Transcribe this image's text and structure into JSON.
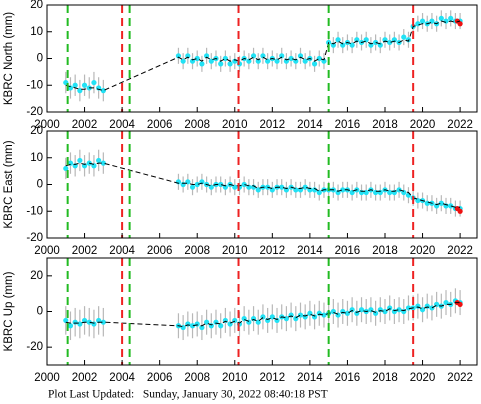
{
  "chart_data": [
    {
      "type": "scatter",
      "ylabel": "KBRC North (mm)",
      "xlim": [
        2000,
        2022.9
      ],
      "xticks": [
        2000,
        2002,
        2004,
        2006,
        2008,
        2010,
        2012,
        2014,
        2016,
        2018,
        2020,
        2022
      ],
      "ylim": [
        -20,
        20
      ],
      "yticks": [
        -20,
        -10,
        0,
        10,
        20
      ],
      "x": [
        2001.0,
        2001.25,
        2001.5,
        2001.75,
        2002.0,
        2002.25,
        2002.5,
        2002.75,
        2003.0,
        2007.0,
        2007.25,
        2007.5,
        2007.75,
        2008.0,
        2008.25,
        2008.5,
        2008.75,
        2009.0,
        2009.25,
        2009.5,
        2009.75,
        2010.0,
        2010.25,
        2010.5,
        2010.75,
        2011.0,
        2011.25,
        2011.5,
        2011.75,
        2012.0,
        2012.25,
        2012.5,
        2012.75,
        2013.0,
        2013.25,
        2013.5,
        2013.75,
        2014.0,
        2014.25,
        2014.5,
        2014.75,
        2015.0,
        2015.25,
        2015.5,
        2015.75,
        2016.0,
        2016.25,
        2016.5,
        2016.75,
        2017.0,
        2017.25,
        2017.5,
        2017.75,
        2018.0,
        2018.25,
        2018.5,
        2018.75,
        2019.0,
        2019.25,
        2019.5,
        2019.75,
        2020.0,
        2020.25,
        2020.5,
        2020.75,
        2021.0,
        2021.25,
        2021.5,
        2021.75,
        2022.0
      ],
      "vlines": [
        {
          "x": 2001.1,
          "color": "#22bb22"
        },
        {
          "x": 2004.0,
          "color": "#ee2222"
        },
        {
          "x": 2004.4,
          "color": "#22bb22"
        },
        {
          "x": 2010.2,
          "color": "#ee2222"
        },
        {
          "x": 2015.0,
          "color": "#22bb22"
        },
        {
          "x": 2019.5,
          "color": "#ee2222"
        }
      ],
      "series": [
        {
          "color": "#22e2f5",
          "error_color": "#b8b8b8",
          "values": [
            -9,
            -11,
            -10,
            -12,
            -10,
            -11,
            -9,
            -11,
            -12,
            1,
            -1,
            1,
            -1,
            0,
            -2,
            1,
            -1,
            0,
            -2,
            0,
            -2,
            -1,
            -2,
            0,
            -1,
            1,
            -1,
            1,
            -1,
            0,
            -1,
            1,
            -1,
            0,
            -1,
            1,
            -1,
            0,
            -2,
            0,
            -1,
            6,
            5,
            7,
            5,
            6,
            5,
            7,
            6,
            7,
            5,
            6,
            5,
            7,
            6,
            7,
            6,
            8,
            7,
            12,
            13,
            14,
            13,
            14,
            13,
            15,
            14,
            15,
            14,
            14
          ],
          "errors": [
            4,
            4,
            4,
            4,
            4,
            4,
            4,
            4,
            4,
            3,
            3,
            3,
            3,
            3,
            3,
            3,
            3,
            3,
            3,
            3,
            3,
            3,
            3,
            3,
            3,
            3,
            3,
            3,
            3,
            3,
            3,
            3,
            3,
            3,
            3,
            3,
            3,
            3,
            3,
            3,
            3,
            3,
            3,
            3,
            3,
            3,
            3,
            3,
            3,
            3,
            3,
            3,
            3,
            3,
            3,
            3,
            3,
            3,
            3,
            3,
            3,
            3,
            3,
            3,
            3,
            3,
            3,
            3,
            3,
            3
          ]
        },
        {
          "color": "#000000",
          "style": "dashed",
          "values": [
            -10,
            -10.5,
            -11,
            -11.5,
            -11.5,
            -11,
            -11,
            -11.5,
            -12,
            0.5,
            -0.5,
            0.5,
            -0.5,
            0,
            -1,
            0.5,
            -0.5,
            0,
            -1,
            0,
            -1,
            -0.5,
            -1,
            0,
            -0.5,
            0.5,
            -0.5,
            0.5,
            -0.5,
            0,
            -0.5,
            0.5,
            -0.5,
            0,
            -0.5,
            0.5,
            -0.5,
            0,
            -1,
            0,
            -0.5,
            6,
            5.5,
            6.5,
            5.5,
            6,
            5.5,
            6.5,
            6,
            6.5,
            5.5,
            6,
            5.5,
            6.5,
            6,
            6.5,
            6,
            7,
            6.5,
            12,
            12.5,
            13,
            13,
            13.5,
            13,
            14,
            13.5,
            14,
            13.5,
            14
          ]
        },
        {
          "color": "#ee1111",
          "x": [
            2021.85,
            2022.0
          ],
          "values": [
            14,
            13
          ]
        }
      ]
    },
    {
      "type": "scatter",
      "ylabel": "KBRC East (mm)",
      "xlim": [
        2000,
        2022.9
      ],
      "xticks": [
        2000,
        2002,
        2004,
        2006,
        2008,
        2010,
        2012,
        2014,
        2016,
        2018,
        2020,
        2022
      ],
      "ylim": [
        -20,
        20
      ],
      "yticks": [
        -20,
        -10,
        0,
        10,
        20
      ],
      "x": [
        2001.0,
        2001.25,
        2001.5,
        2001.75,
        2002.0,
        2002.25,
        2002.5,
        2002.75,
        2003.0,
        2007.0,
        2007.25,
        2007.5,
        2007.75,
        2008.0,
        2008.25,
        2008.5,
        2008.75,
        2009.0,
        2009.25,
        2009.5,
        2009.75,
        2010.0,
        2010.25,
        2010.5,
        2010.75,
        2011.0,
        2011.25,
        2011.5,
        2011.75,
        2012.0,
        2012.25,
        2012.5,
        2012.75,
        2013.0,
        2013.25,
        2013.5,
        2013.75,
        2014.0,
        2014.25,
        2014.5,
        2014.75,
        2015.0,
        2015.25,
        2015.5,
        2015.75,
        2016.0,
        2016.25,
        2016.5,
        2016.75,
        2017.0,
        2017.25,
        2017.5,
        2017.75,
        2018.0,
        2018.25,
        2018.5,
        2018.75,
        2019.0,
        2019.25,
        2019.5,
        2019.75,
        2020.0,
        2020.25,
        2020.5,
        2020.75,
        2021.0,
        2021.25,
        2021.5,
        2021.75,
        2022.0
      ],
      "vlines": [
        {
          "x": 2001.1,
          "color": "#22bb22"
        },
        {
          "x": 2004.0,
          "color": "#ee2222"
        },
        {
          "x": 2004.4,
          "color": "#22bb22"
        },
        {
          "x": 2010.2,
          "color": "#ee2222"
        },
        {
          "x": 2015.0,
          "color": "#22bb22"
        },
        {
          "x": 2019.5,
          "color": "#ee2222"
        }
      ],
      "series": [
        {
          "color": "#22e2f5",
          "error_color": "#b8b8b8",
          "values": [
            6,
            8,
            7,
            9,
            7,
            8,
            7,
            9,
            8,
            1,
            0,
            1,
            -1,
            0,
            1,
            0,
            -1,
            0,
            0,
            -1,
            0,
            -1,
            -1,
            0,
            -1,
            -1,
            -2,
            -1,
            -1,
            -2,
            -1,
            -1,
            -2,
            -1,
            -2,
            -2,
            -1,
            -2,
            -2,
            -3,
            -2,
            -2,
            -2,
            -3,
            -2,
            -2,
            -3,
            -2,
            -3,
            -3,
            -2,
            -3,
            -3,
            -2,
            -3,
            -3,
            -2,
            -3,
            -4,
            -5,
            -6,
            -6,
            -7,
            -7,
            -8,
            -7,
            -8,
            -8,
            -9,
            -9
          ],
          "errors": [
            4,
            4,
            4,
            4,
            4,
            4,
            4,
            4,
            4,
            3,
            3,
            3,
            3,
            3,
            3,
            3,
            3,
            3,
            3,
            3,
            3,
            3,
            3,
            3,
            3,
            3,
            3,
            3,
            3,
            3,
            3,
            3,
            3,
            3,
            3,
            3,
            3,
            3,
            3,
            3,
            3,
            3,
            3,
            3,
            3,
            3,
            3,
            3,
            3,
            3,
            3,
            3,
            3,
            3,
            3,
            3,
            3,
            3,
            3,
            3,
            3,
            3,
            3,
            3,
            3,
            3,
            3,
            3,
            3,
            3
          ]
        },
        {
          "color": "#000000",
          "style": "dashed",
          "values": [
            7,
            7.5,
            7.5,
            8,
            7.5,
            8,
            7.5,
            8,
            8,
            0.5,
            0.5,
            0.5,
            0,
            0,
            0.5,
            0,
            -0.5,
            0,
            0,
            -0.5,
            0,
            -0.5,
            -0.5,
            0,
            -0.5,
            -0.5,
            -1.5,
            -1,
            -1,
            -1.5,
            -1,
            -1,
            -1.5,
            -1,
            -1.5,
            -1.5,
            -1,
            -1.5,
            -1.5,
            -2.5,
            -2,
            -2,
            -2,
            -2.5,
            -2,
            -2,
            -2.5,
            -2,
            -2.5,
            -2.5,
            -2,
            -2.5,
            -2.5,
            -2,
            -2.5,
            -2.5,
            -2,
            -2.5,
            -3,
            -5,
            -5.5,
            -6,
            -6.5,
            -7,
            -7.5,
            -7,
            -7.5,
            -8,
            -8.5,
            -8.5
          ]
        },
        {
          "color": "#ee1111",
          "x": [
            2021.85,
            2022.0
          ],
          "values": [
            -9,
            -10
          ]
        }
      ]
    },
    {
      "type": "scatter",
      "ylabel": "KBRC Up (mm)",
      "xlim": [
        2000,
        2022.9
      ],
      "xticks": [
        2000,
        2002,
        2004,
        2006,
        2008,
        2010,
        2012,
        2014,
        2016,
        2018,
        2020,
        2022
      ],
      "ylim": [
        -30,
        30
      ],
      "yticks": [
        -20,
        0,
        20
      ],
      "x": [
        2001.0,
        2001.25,
        2001.5,
        2001.75,
        2002.0,
        2002.25,
        2002.5,
        2002.75,
        2003.0,
        2007.0,
        2007.25,
        2007.5,
        2007.75,
        2008.0,
        2008.25,
        2008.5,
        2008.75,
        2009.0,
        2009.25,
        2009.5,
        2009.75,
        2010.0,
        2010.25,
        2010.5,
        2010.75,
        2011.0,
        2011.25,
        2011.5,
        2011.75,
        2012.0,
        2012.25,
        2012.5,
        2012.75,
        2013.0,
        2013.25,
        2013.5,
        2013.75,
        2014.0,
        2014.25,
        2014.5,
        2014.75,
        2015.0,
        2015.25,
        2015.5,
        2015.75,
        2016.0,
        2016.25,
        2016.5,
        2016.75,
        2017.0,
        2017.25,
        2017.5,
        2017.75,
        2018.0,
        2018.25,
        2018.5,
        2018.75,
        2019.0,
        2019.25,
        2019.5,
        2019.75,
        2020.0,
        2020.25,
        2020.5,
        2020.75,
        2021.0,
        2021.25,
        2021.5,
        2021.75,
        2022.0
      ],
      "vlines": [
        {
          "x": 2001.1,
          "color": "#22bb22"
        },
        {
          "x": 2004.0,
          "color": "#ee2222"
        },
        {
          "x": 2004.4,
          "color": "#22bb22"
        },
        {
          "x": 2010.2,
          "color": "#ee2222"
        },
        {
          "x": 2015.0,
          "color": "#22bb22"
        },
        {
          "x": 2019.5,
          "color": "#ee2222"
        }
      ],
      "series": [
        {
          "color": "#22e2f5",
          "error_color": "#b8b8b8",
          "values": [
            -5,
            -8,
            -6,
            -7,
            -5,
            -6,
            -7,
            -5,
            -6,
            -8,
            -9,
            -7,
            -8,
            -7,
            -9,
            -6,
            -8,
            -6,
            -8,
            -5,
            -7,
            -5,
            -7,
            -4,
            -6,
            -4,
            -6,
            -3,
            -5,
            -3,
            -5,
            -3,
            -4,
            -2,
            -4,
            -2,
            -3,
            -1,
            -3,
            -1,
            -2,
            -1,
            0,
            -2,
            0,
            -1,
            1,
            -1,
            1,
            0,
            1,
            -1,
            1,
            0,
            2,
            0,
            1,
            0,
            2,
            2,
            3,
            1,
            3,
            2,
            4,
            3,
            5,
            4,
            6,
            5
          ],
          "errors": [
            8,
            8,
            8,
            8,
            8,
            8,
            8,
            8,
            8,
            7,
            7,
            7,
            7,
            7,
            7,
            7,
            7,
            7,
            7,
            7,
            7,
            7,
            7,
            7,
            7,
            7,
            7,
            7,
            7,
            7,
            7,
            7,
            7,
            7,
            7,
            7,
            7,
            7,
            7,
            7,
            7,
            7,
            7,
            7,
            7,
            7,
            7,
            7,
            7,
            7,
            7,
            7,
            7,
            7,
            7,
            7,
            7,
            7,
            7,
            7,
            7,
            7,
            7,
            7,
            7,
            7,
            7,
            7,
            7,
            7
          ]
        },
        {
          "color": "#000000",
          "style": "dashed",
          "values": [
            -6,
            -6.5,
            -6.5,
            -6.5,
            -6,
            -6,
            -6.5,
            -6,
            -6,
            -8,
            -8.5,
            -7.5,
            -8,
            -7.5,
            -8,
            -6.5,
            -7.5,
            -6.5,
            -7,
            -5.5,
            -6.5,
            -5.5,
            -6.5,
            -4.5,
            -5.5,
            -4.5,
            -5.5,
            -3.5,
            -4.5,
            -3.5,
            -4.5,
            -3,
            -3.5,
            -2.5,
            -3.5,
            -2,
            -2.5,
            -1.5,
            -2.5,
            -1.5,
            -2,
            -1,
            -0.5,
            -1.5,
            -0.5,
            -1,
            0.5,
            -0.5,
            0.5,
            0,
            0.5,
            -0.5,
            0.5,
            0,
            1.5,
            0.5,
            1,
            0.5,
            1.5,
            2,
            2.5,
            1.5,
            2.5,
            2,
            3.5,
            3,
            4,
            4,
            5,
            5
          ]
        },
        {
          "color": "#ee1111",
          "x": [
            2021.85,
            2022.0
          ],
          "values": [
            5,
            4
          ]
        }
      ]
    }
  ],
  "footer": "Plot Last Updated:   Sunday, January 30, 2022 08:40:18 PST"
}
